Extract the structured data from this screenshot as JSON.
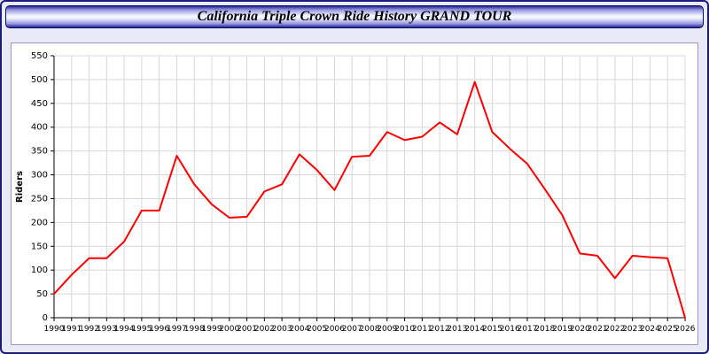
{
  "window": {
    "title": "California Triple Crown Ride History GRAND TOUR"
  },
  "chart_data": {
    "type": "line",
    "title": "California Triple Crown Ride History GRAND TOUR",
    "xlabel": "",
    "ylabel": "Riders",
    "ylim": [
      0,
      550
    ],
    "ytick_step": 50,
    "grid": true,
    "legend_position": "none",
    "x": [
      1990,
      1991,
      1992,
      1993,
      1994,
      1995,
      1996,
      1997,
      1998,
      1999,
      2000,
      2001,
      2002,
      2003,
      2004,
      2005,
      2006,
      2007,
      2008,
      2009,
      2010,
      2011,
      2012,
      2013,
      2014,
      2015,
      2016,
      2017,
      2018,
      2019,
      2020,
      2021,
      2022,
      2023,
      2024,
      2025,
      2026
    ],
    "series": [
      {
        "name": "Riders",
        "color": "#ff0000",
        "values": [
          50,
          90,
          125,
          125,
          160,
          225,
          225,
          340,
          280,
          238,
          210,
          212,
          265,
          280,
          343,
          310,
          268,
          338,
          340,
          390,
          373,
          380,
          410,
          385,
          495,
          390,
          355,
          323,
          270,
          215,
          135,
          130,
          83,
          130,
          127,
          125,
          0
        ]
      }
    ],
    "colors": {
      "line": "#ff0000",
      "grid": "#d8d8d8",
      "axis": "#000000",
      "plot_bg": "#ffffff",
      "page_bg": "#e9e9f8"
    }
  }
}
